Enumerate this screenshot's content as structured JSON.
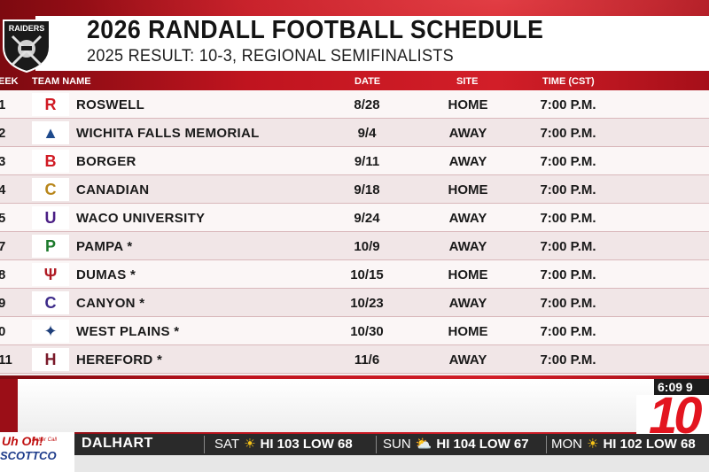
{
  "header": {
    "logo_text": "RAIDERS",
    "title": "2026 RANDALL FOOTBALL SCHEDULE",
    "subtitle": "2025 RESULT: 10-3, REGIONAL SEMIFINALISTS"
  },
  "columns": {
    "week": "EEK",
    "team": "TEAM NAME",
    "date": "DATE",
    "site": "SITE",
    "time": "TIME (CST)"
  },
  "schedule": [
    {
      "week": "1",
      "logo": "R",
      "logo_color": "#d11b24",
      "team": "ROSWELL",
      "date": "8/28",
      "site": "HOME",
      "time": "7:00 P.M."
    },
    {
      "week": "2",
      "logo": "▲",
      "logo_color": "#1e4a8c",
      "team": "WICHITA FALLS MEMORIAL",
      "date": "9/4",
      "site": "AWAY",
      "time": "7:00 P.M."
    },
    {
      "week": "3",
      "logo": "B",
      "logo_color": "#d11b24",
      "team": "BORGER",
      "date": "9/11",
      "site": "AWAY",
      "time": "7:00 P.M."
    },
    {
      "week": "4",
      "logo": "C",
      "logo_color": "#b8861b",
      "team": "CANADIAN",
      "date": "9/18",
      "site": "HOME",
      "time": "7:00 P.M."
    },
    {
      "week": "5",
      "logo": "U",
      "logo_color": "#4b1f85",
      "team": "WACO UNIVERSITY",
      "date": "9/24",
      "site": "AWAY",
      "time": "7:00 P.M."
    },
    {
      "week": "7",
      "logo": "P",
      "logo_color": "#1d7a2c",
      "team": "PAMPA *",
      "date": "10/9",
      "site": "AWAY",
      "time": "7:00 P.M."
    },
    {
      "week": "8",
      "logo": "Ψ",
      "logo_color": "#b01b24",
      "team": "DUMAS *",
      "date": "10/15",
      "site": "HOME",
      "time": "7:00 P.M."
    },
    {
      "week": "9",
      "logo": "C",
      "logo_color": "#3d2b8a",
      "team": "CANYON *",
      "date": "10/23",
      "site": "AWAY",
      "time": "7:00 P.M."
    },
    {
      "week": "0",
      "logo": "✦",
      "logo_color": "#1e3f7a",
      "team": "WEST PLAINS *",
      "date": "10/30",
      "site": "HOME",
      "time": "7:00 P.M."
    },
    {
      "week": "11",
      "logo": "H",
      "logo_color": "#7a1a2a",
      "team": "HEREFORD *",
      "date": "11/6",
      "site": "AWAY",
      "time": "7:00 P.M."
    }
  ],
  "sponsor": {
    "line1": "Uh Oh!",
    "line2": "Better Call",
    "line3": "SCOTTCO"
  },
  "clock": "6:09  9",
  "brand": "10",
  "weather": {
    "city": "DALHART",
    "days": [
      {
        "day": "SAT",
        "hi": "HI 103",
        "low": "LOW 68"
      },
      {
        "day": "SUN",
        "hi": "HI 104",
        "low": "LOW 67"
      },
      {
        "day": "MON",
        "hi": "HI 102",
        "low": "LOW 68"
      }
    ]
  }
}
